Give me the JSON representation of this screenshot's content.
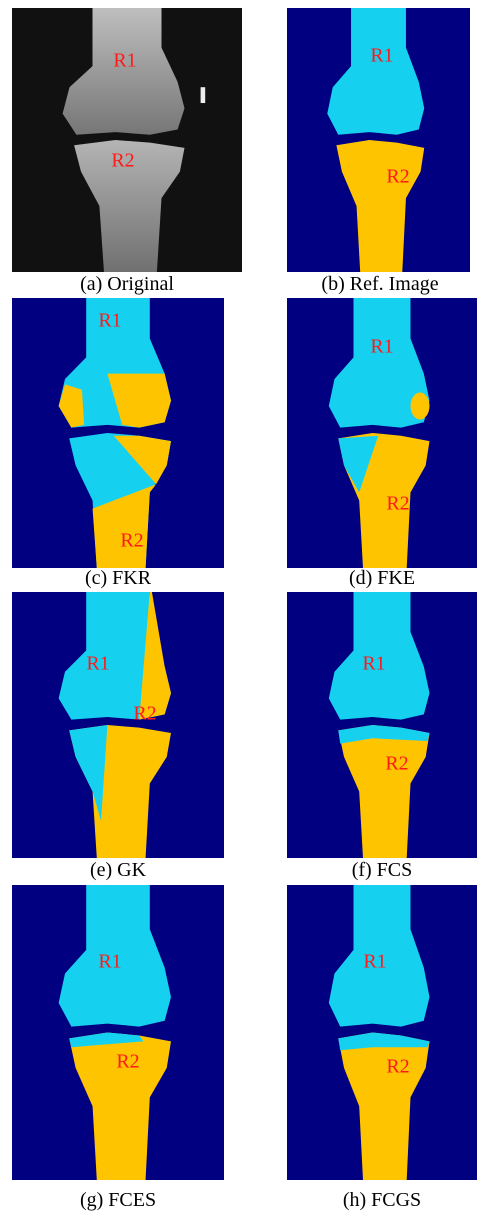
{
  "panels": [
    {
      "caption": "(a) Original",
      "labels": [
        "R1",
        "R2"
      ]
    },
    {
      "caption": "(b) Ref. Image",
      "labels": [
        "R1",
        "R2"
      ]
    },
    {
      "caption": "(c) FKR",
      "labels": [
        "R1",
        "R2"
      ]
    },
    {
      "caption": "(d) FKE",
      "labels": [
        "R1",
        "R2"
      ]
    },
    {
      "caption": "(e) GK",
      "labels": [
        "R1",
        "R2"
      ]
    },
    {
      "caption": "(f) FCS",
      "labels": [
        "R1",
        "R2"
      ]
    },
    {
      "caption": "(g) FCES",
      "labels": [
        "R1",
        "R2"
      ]
    },
    {
      "caption": "(h) FCGS",
      "labels": [
        "R1",
        "R2"
      ]
    }
  ]
}
